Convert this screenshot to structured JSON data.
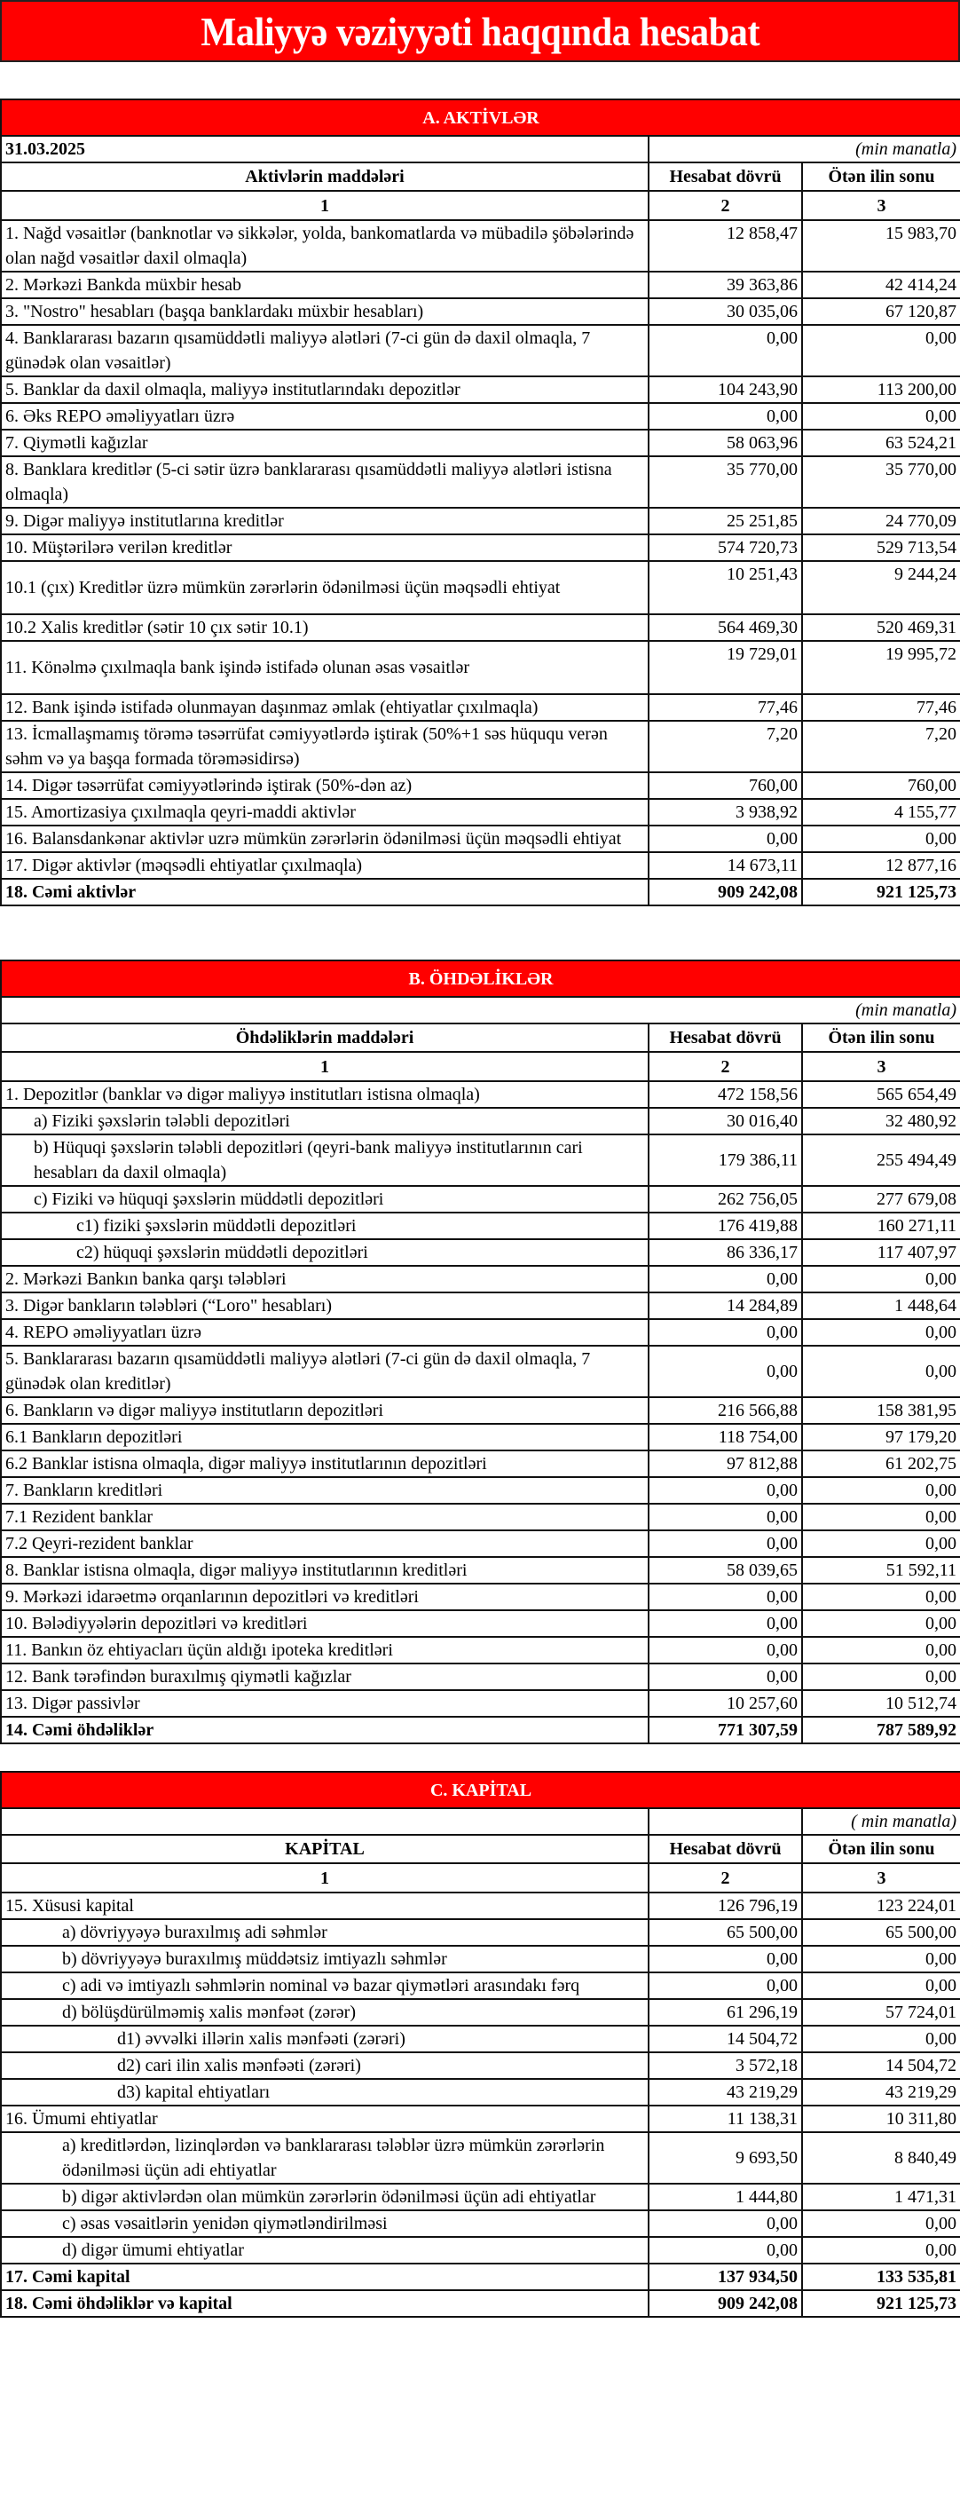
{
  "title": "Maliyyə vəziyyəti haqqında hesabat",
  "colors": {
    "accent": "#FF0000",
    "header_text": "#FFFFFF",
    "border": "#000000"
  },
  "sections": [
    {
      "key": "assets",
      "title": "A. AKTİVLƏR",
      "date": "31.03.2025",
      "units": "(min manatla)",
      "headers": [
        "Aktivlərin   maddələri",
        "Hesabat dövrü",
        "Ötən ilin sonu"
      ],
      "numbers": [
        "1",
        "2",
        "3"
      ],
      "rows": [
        {
          "label": "1. Nağd vəsaitlər (banknotlar və sikkələr, yolda, bankomatlarda və mübadilə şöbələrində olan nağd vəsaitlər daxil olmaqla)",
          "current": "12 858,47",
          "previous": "15 983,70",
          "level": 0
        },
        {
          "label": "2. Mərkəzi Bankda müxbir hesab",
          "current": "39 363,86",
          "previous": "42 414,24",
          "level": 0
        },
        {
          "label": "3. \"Nostro\" hesabları (başqa banklardakı müxbir hesabları)",
          "current": "30 035,06",
          "previous": "67 120,87",
          "level": 0
        },
        {
          "label": "4. Banklararası bazarın qısamüddətli maliyyə alətləri (7-ci gün də daxil olmaqla, 7 günədək olan vəsaitlər)",
          "current": "0,00",
          "previous": "0,00",
          "level": 0
        },
        {
          "label": "5. Banklar da daxil olmaqla, maliyyə institutlarındakı depozitlər",
          "current": "104 243,90",
          "previous": "113 200,00",
          "level": 0
        },
        {
          "label": "6. Əks REPO əməliyyatları üzrə",
          "current": "0,00",
          "previous": "0,00",
          "level": 0
        },
        {
          "label": "7. Qiymətli kağızlar",
          "current": "58 063,96",
          "previous": "63 524,21",
          "level": 0
        },
        {
          "label": "8. Banklara kreditlər (5-ci sətir üzrə banklararası qısamüddətli maliyyə alətləri istisna olmaqla)",
          "current": "35 770,00",
          "previous": "35 770,00",
          "level": 0
        },
        {
          "label": "9. Digər maliyyə institutlarına kreditlər",
          "current": "25 251,85",
          "previous": "24 770,09",
          "level": 0
        },
        {
          "label": "10. Müştərilərə verilən kreditlər",
          "current": "574 720,73",
          "previous": "529 713,54",
          "level": 0
        },
        {
          "label": "10.1 (çıx) Kreditlər üzrə mümkün zərərlərin ödənilməsi üçün məqsədli ehtiyat",
          "current": "10 251,43",
          "previous": "9 244,24",
          "level": 0
        },
        {
          "label": "10.2 Xalis kreditlər (sətir 10 çıx sətir 10.1)",
          "current": "564 469,30",
          "previous": "520 469,31",
          "level": 0
        },
        {
          "label": "11. Könəlmə çıxılmaqla bank işində istifadə olunan əsas vəsaitlər",
          "current": "19 729,01",
          "previous": "19 995,72",
          "level": 0
        },
        {
          "label": "12. Bank işində istifadə olunmayan daşınmaz əmlak (ehtiyatlar çıxılmaqla)",
          "current": "77,46",
          "previous": "77,46",
          "level": 0
        },
        {
          "label": "13. İcmallaşmamış törəmə təsərrüfat cəmiyyətlərdə iştirak (50%+1 səs hüququ verən səhm və ya başqa formada törəməsidirsə)",
          "current": "7,20",
          "previous": "7,20",
          "level": 0
        },
        {
          "label": "14. Digər təsərrüfat cəmiyyətlərində iştirak (50%-dən az)",
          "current": "760,00",
          "previous": "760,00",
          "level": 0
        },
        {
          "label": "15. Amortizasiya çıxılmaqla qeyri-maddi aktivlər",
          "current": "3 938,92",
          "previous": "4 155,77",
          "level": 0
        },
        {
          "label": "16. Balansdankənar aktivlər uzrə mümkün zərərlərin ödənilməsi üçün məqsədli ehtiyat",
          "current": "0,00",
          "previous": "0,00",
          "level": 0
        },
        {
          "label": "17. Digər aktivlər (məqsədli ehtiyatlar çıxılmaqla)",
          "current": "14 673,11",
          "previous": "12 877,16",
          "level": 0
        },
        {
          "label": "18. Cəmi aktivlər",
          "current": "909 242,08",
          "previous": "921 125,73",
          "level": 0,
          "total": true
        }
      ]
    },
    {
      "key": "liabilities",
      "title": "B. ÖHDƏLİKLƏR",
      "units": "(min manatla)",
      "headers": [
        "Öhdəliklərin maddələri",
        "Hesabat dövrü",
        "Ötən ilin sonu"
      ],
      "numbers": [
        "1",
        "2",
        "3"
      ],
      "rows": [
        {
          "label": "1. Depozitlər (banklar və digər maliyyə institutları istisna olmaqla)",
          "current": "472 158,56",
          "previous": "565 654,49",
          "level": 0
        },
        {
          "label": "a)  Fiziki şəxslərin tələbli depozitləri",
          "current": "30 016,40",
          "previous": "32 480,92",
          "level": 1
        },
        {
          "label": "b) Hüquqi şəxslərin tələbli depozitləri (qeyri-bank maliyyə institutlarının cari hesabları da daxil olmaqla)",
          "current": "179 386,11",
          "previous": "255 494,49",
          "level": 1
        },
        {
          "label": "c) Fiziki və hüquqi şəxslərin müddətli depozitləri",
          "current": "262 756,05",
          "previous": "277 679,08",
          "level": 1
        },
        {
          "label": "c1) fiziki şəxslərin müddətli depozitləri",
          "current": "176 419,88",
          "previous": "160 271,11",
          "level": 2
        },
        {
          "label": "c2) hüquqi şəxslərin müddətli depozitləri",
          "current": "86 336,17",
          "previous": "117 407,97",
          "level": 2
        },
        {
          "label": "2. Mərkəzi Bankın banka qarşı tələbləri",
          "current": "0,00",
          "previous": "0,00",
          "level": 0
        },
        {
          "label": "3. Digər bankların tələbləri (“Loro\" hesabları)",
          "current": "14 284,89",
          "previous": "1 448,64",
          "level": 0
        },
        {
          "label": "4. REPO əməliyyatları  üzrə",
          "current": "0,00",
          "previous": "0,00",
          "level": 0
        },
        {
          "label": "5. Banklararası bazarın qısamüddətli maliyyə alətləri (7-ci gün də daxil olmaqla, 7 günədək olan kreditlər)",
          "current": "0,00",
          "previous": "0,00",
          "level": 0
        },
        {
          "label": "6. Bankların və digər maliyyə institutların depozitləri",
          "current": "216 566,88",
          "previous": "158 381,95",
          "level": 0
        },
        {
          "label": "6.1  Bankların depozitləri",
          "current": "118 754,00",
          "previous": "97 179,20",
          "level": 0
        },
        {
          "label": "6.2 Banklar istisna olmaqla, digər maliyyə institutlarının depozitləri",
          "current": "97 812,88",
          "previous": "61 202,75",
          "level": 0
        },
        {
          "label": "7. Bankların kreditləri",
          "current": "0,00",
          "previous": "0,00",
          "level": 0
        },
        {
          "label": "7.1 Rezident banklar",
          "current": "0,00",
          "previous": "0,00",
          "level": 0
        },
        {
          "label": "7.2 Qeyri-rezident banklar",
          "current": "0,00",
          "previous": "0,00",
          "level": 0
        },
        {
          "label": "8. Banklar istisna olmaqla, digər maliyyə institutlarının kreditləri",
          "current": "58 039,65",
          "previous": "51 592,11",
          "level": 0
        },
        {
          "label": "9. Mərkəzi idarəetmə orqanlarının depozitləri və kreditləri",
          "current": "0,00",
          "previous": "0,00",
          "level": 0
        },
        {
          "label": "10. Bələdiyyələrin depozitləri və kreditləri",
          "current": "0,00",
          "previous": "0,00",
          "level": 0
        },
        {
          "label": "11. Bankın öz ehtiyacları üçün aldığı ipoteka kreditləri",
          "current": "0,00",
          "previous": "0,00",
          "level": 0
        },
        {
          "label": "12. Bank tərəfindən buraxılmış qiymətli kağızlar",
          "current": "0,00",
          "previous": "0,00",
          "level": 0
        },
        {
          "label": "13. Digər passivlər",
          "current": "10 257,60",
          "previous": "10 512,74",
          "level": 0
        },
        {
          "label": "14. Cəmi öhdəliklər",
          "current": "771 307,59",
          "previous": "787 589,92",
          "level": 0,
          "total": true
        }
      ]
    },
    {
      "key": "capital",
      "title": "C. KAPİTAL",
      "units": "( min manatla)",
      "headers": [
        "KAPİTAL",
        "Hesabat dövrü",
        "Ötən ilin sonu"
      ],
      "numbers": [
        "1",
        "2",
        "3"
      ],
      "rows": [
        {
          "label": "15. Xüsusi kapital",
          "current": "126 796,19",
          "previous": "123 224,01",
          "level": 0
        },
        {
          "label": "a) dövriyyəyə buraxılmış adi səhmlər",
          "current": "65 500,00",
          "previous": "65 500,00",
          "level": 1
        },
        {
          "label": "b) dövriyyəyə buraxılmış müddətsiz imtiyazlı səhmlər",
          "current": "0,00",
          "previous": "0,00",
          "level": 1
        },
        {
          "label": "c) adi və imtiyazlı səhmlərin nominal və bazar qiymətləri arasındakı fərq",
          "current": "0,00",
          "previous": "0,00",
          "level": 1
        },
        {
          "label": "d) bölüşdürülməmiş xalis mənfəət (zərər)",
          "current": "61 296,19",
          "previous": "57 724,01",
          "level": 1
        },
        {
          "label": "d1) əvvəlki illərin xalis mənfəəti (zərəri)",
          "current": "14 504,72",
          "previous": "0,00",
          "level": 2
        },
        {
          "label": "d2) cari ilin xalis mənfəəti (zərəri)",
          "current": "3 572,18",
          "previous": "14 504,72",
          "level": 2
        },
        {
          "label": "d3) kapital ehtiyatları",
          "current": "43 219,29",
          "previous": "43 219,29",
          "level": 2
        },
        {
          "label": "16. Ümumi ehtiyatlar",
          "current": "11 138,31",
          "previous": "10 311,80",
          "level": 0
        },
        {
          "label": "a) kreditlərdən, lizinqlərdən və banklararası  tələblər üzrə mümkün zərərlərin ödənilməsi üçün adi ehtiyatlar",
          "current": "9 693,50",
          "previous": "8 840,49",
          "level": 1
        },
        {
          "label": "b) digər aktivlərdən olan mümkün zərərlərin ödənilməsi üçün adi ehtiyatlar",
          "current": "1 444,80",
          "previous": "1 471,31",
          "level": 1
        },
        {
          "label": "c) əsas vəsaitlərin yenidən qiymətləndirilməsi",
          "current": "0,00",
          "previous": "0,00",
          "level": 1
        },
        {
          "label": "d) digər ümumi ehtiyatlar",
          "current": "0,00",
          "previous": "0,00",
          "level": 1
        },
        {
          "label": "17. Cəmi kapital",
          "current": "137 934,50",
          "previous": "133 535,81",
          "level": 0,
          "total": true
        },
        {
          "label": "18. Cəmi öhdəliklər və kapital",
          "current": "909 242,08",
          "previous": "921 125,73",
          "level": 0,
          "total": true
        }
      ]
    }
  ]
}
